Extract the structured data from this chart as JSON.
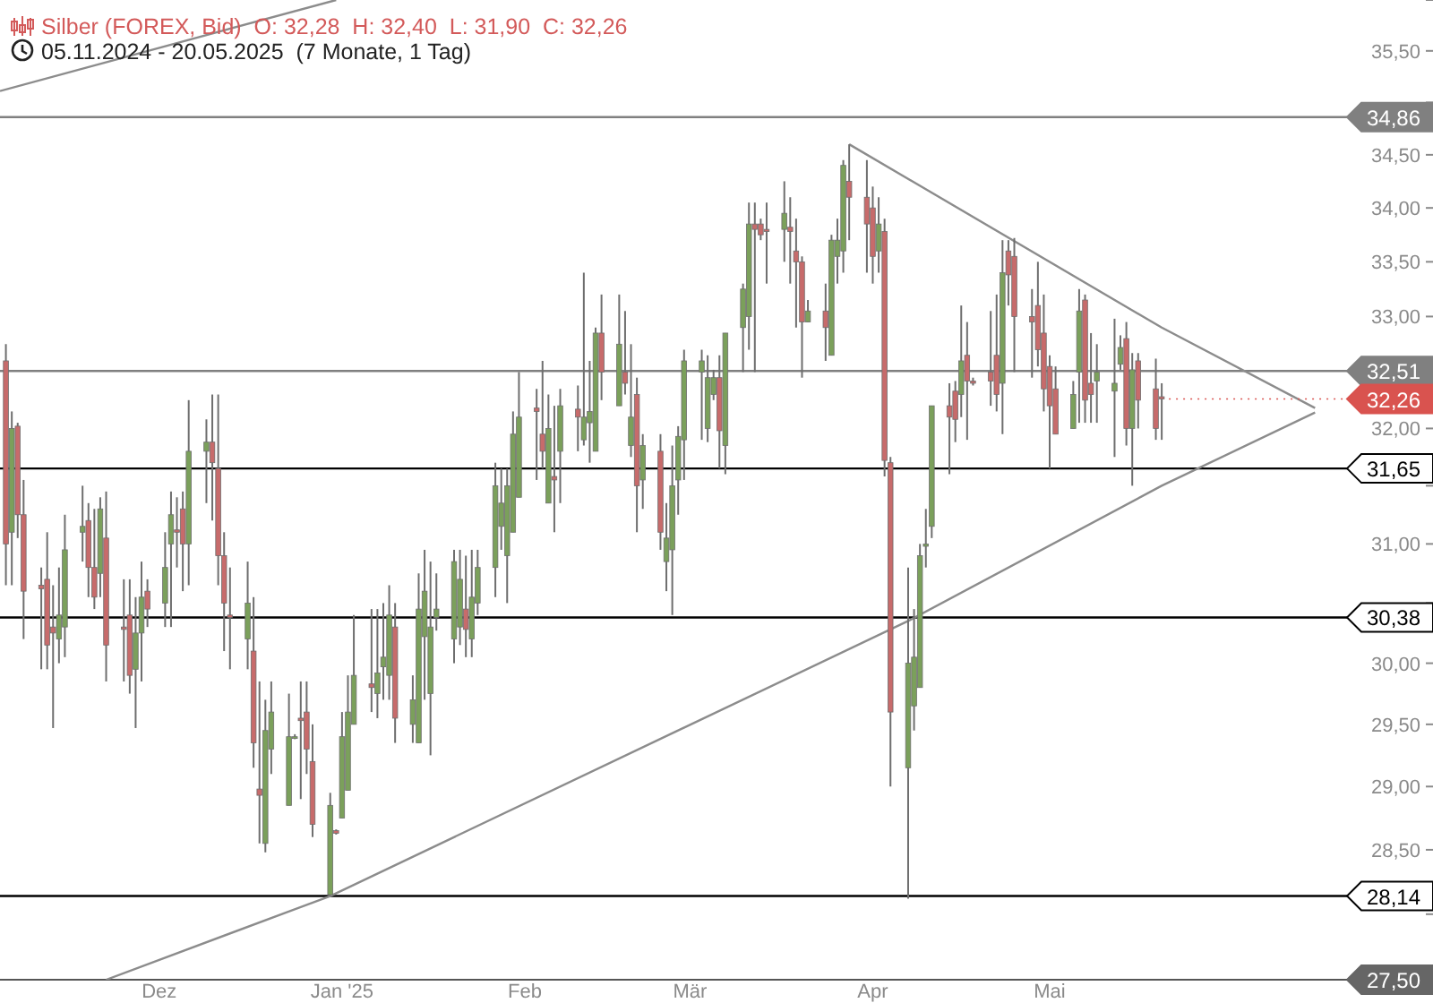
{
  "chart_data": {
    "type": "candlestick",
    "title": "Silber (FOREX, Bid)  O: 32,28  H: 32,40  L: 31,90  C: 32,26",
    "subtitle": "05.11.2024 - 20.05.2025  (7 Monate, 1 Tag)",
    "x": [
      "2024-11-05",
      "2024-11-06",
      "2024-11-07",
      "2024-11-08",
      "2024-11-11",
      "2024-11-12",
      "2024-11-13",
      "2024-11-14",
      "2024-11-15",
      "2024-11-18",
      "2024-11-19",
      "2024-11-20",
      "2024-11-21",
      "2024-11-22",
      "2024-11-25",
      "2024-11-26",
      "2024-11-27",
      "2024-11-28",
      "2024-11-29",
      "2024-12-02",
      "2024-12-03",
      "2024-12-04",
      "2024-12-05",
      "2024-12-06",
      "2024-12-09",
      "2024-12-10",
      "2024-12-11",
      "2024-12-12",
      "2024-12-13",
      "2024-12-16",
      "2024-12-17",
      "2024-12-18",
      "2024-12-19",
      "2024-12-20",
      "2024-12-23",
      "2024-12-24",
      "2024-12-25",
      "2024-12-26",
      "2024-12-27",
      "2024-12-30",
      "2024-12-31",
      "2025-01-01",
      "2025-01-02",
      "2025-01-03",
      "2025-01-06",
      "2025-01-07",
      "2025-01-08",
      "2025-01-09",
      "2025-01-10",
      "2025-01-13",
      "2025-01-14",
      "2025-01-15",
      "2025-01-16",
      "2025-01-17",
      "2025-01-20",
      "2025-01-21",
      "2025-01-22",
      "2025-01-23",
      "2025-01-24",
      "2025-01-27",
      "2025-01-28",
      "2025-01-29",
      "2025-01-30",
      "2025-01-31",
      "2025-02-03",
      "2025-02-04",
      "2025-02-05",
      "2025-02-06",
      "2025-02-07",
      "2025-02-10",
      "2025-02-11",
      "2025-02-12",
      "2025-02-13",
      "2025-02-14",
      "2025-02-17",
      "2025-02-18",
      "2025-02-19",
      "2025-02-20",
      "2025-02-21",
      "2025-02-24",
      "2025-02-25",
      "2025-02-26",
      "2025-02-27",
      "2025-02-28",
      "2025-03-03",
      "2025-03-04",
      "2025-03-05",
      "2025-03-06",
      "2025-03-07",
      "2025-03-10",
      "2025-03-11",
      "2025-03-12",
      "2025-03-13",
      "2025-03-14",
      "2025-03-17",
      "2025-03-18",
      "2025-03-19",
      "2025-03-20",
      "2025-03-21",
      "2025-03-24",
      "2025-03-25",
      "2025-03-26",
      "2025-03-27",
      "2025-03-28",
      "2025-03-31",
      "2025-04-01",
      "2025-04-02",
      "2025-04-03",
      "2025-04-04",
      "2025-04-07",
      "2025-04-08",
      "2025-04-09",
      "2025-04-10",
      "2025-04-11",
      "2025-04-14",
      "2025-04-15",
      "2025-04-16",
      "2025-04-17",
      "2025-04-18",
      "2025-04-21",
      "2025-04-22",
      "2025-04-23",
      "2025-04-24",
      "2025-04-25",
      "2025-04-28",
      "2025-04-29",
      "2025-04-30",
      "2025-05-01",
      "2025-05-02",
      "2025-05-05",
      "2025-05-06",
      "2025-05-07",
      "2025-05-08",
      "2025-05-09",
      "2025-05-12",
      "2025-05-13",
      "2025-05-14",
      "2025-05-15",
      "2025-05-16",
      "2025-05-19",
      "2025-05-20"
    ],
    "ohlc": [
      [
        32.6,
        32.75,
        30.65,
        31.0
      ],
      [
        31.1,
        32.15,
        30.65,
        32.0
      ],
      [
        32.02,
        32.05,
        31.05,
        31.25
      ],
      [
        31.25,
        31.55,
        30.2,
        30.6
      ],
      [
        30.65,
        30.8,
        29.95,
        30.62
      ],
      [
        30.7,
        31.1,
        29.95,
        30.15
      ],
      [
        30.3,
        30.65,
        29.47,
        30.25
      ],
      [
        30.2,
        30.8,
        30.0,
        30.4
      ],
      [
        30.3,
        31.25,
        30.05,
        30.95
      ],
      [
        31.1,
        31.5,
        30.85,
        31.15
      ],
      [
        31.2,
        31.35,
        30.55,
        30.8
      ],
      [
        30.8,
        31.3,
        30.45,
        30.55
      ],
      [
        30.75,
        31.4,
        30.55,
        31.3
      ],
      [
        31.05,
        31.45,
        29.85,
        30.15
      ],
      [
        30.3,
        30.7,
        29.85,
        30.28
      ],
      [
        30.4,
        30.7,
        29.75,
        29.9
      ],
      [
        29.95,
        30.55,
        29.47,
        30.25
      ],
      [
        30.25,
        30.85,
        29.85,
        30.55
      ],
      [
        30.6,
        30.7,
        30.3,
        30.45
      ],
      [
        30.5,
        31.1,
        30.3,
        30.8
      ],
      [
        31.0,
        31.45,
        30.3,
        31.25
      ],
      [
        31.12,
        31.4,
        30.8,
        31.1
      ],
      [
        31.3,
        31.45,
        30.6,
        31.0
      ],
      [
        31.0,
        32.25,
        30.65,
        31.8
      ],
      [
        31.8,
        32.08,
        31.35,
        31.88
      ],
      [
        31.88,
        32.3,
        31.2,
        31.7
      ],
      [
        31.65,
        32.3,
        30.65,
        30.9
      ],
      [
        30.9,
        31.1,
        30.1,
        30.5
      ],
      [
        30.4,
        30.8,
        29.95,
        30.38
      ],
      [
        30.2,
        30.85,
        29.95,
        30.5
      ],
      [
        30.1,
        30.55,
        29.15,
        29.35
      ],
      [
        28.98,
        29.85,
        28.55,
        28.93
      ],
      [
        28.55,
        29.7,
        28.48,
        29.45
      ],
      [
        29.3,
        29.85,
        29.1,
        29.6
      ],
      [
        28.85,
        29.75,
        28.85,
        29.4
      ],
      [
        29.39,
        29.42,
        29.38,
        29.4
      ],
      [
        29.55,
        29.85,
        28.9,
        29.53
      ],
      [
        29.6,
        29.85,
        29.1,
        29.3
      ],
      [
        29.2,
        29.5,
        28.6,
        28.7
      ],
      [
        28.15,
        28.95,
        28.14,
        28.85
      ],
      [
        28.65,
        28.66,
        28.62,
        28.63
      ],
      [
        28.75,
        29.6,
        28.75,
        29.4
      ],
      [
        28.97,
        29.9,
        28.97,
        29.6
      ],
      [
        29.5,
        30.4,
        29.5,
        29.9
      ],
      [
        29.83,
        30.45,
        29.6,
        29.8
      ],
      [
        29.75,
        30.45,
        29.55,
        29.92
      ],
      [
        29.97,
        30.5,
        29.7,
        30.05
      ],
      [
        29.9,
        30.65,
        29.7,
        30.4
      ],
      [
        30.3,
        30.5,
        29.35,
        29.55
      ],
      [
        29.5,
        29.9,
        29.35,
        29.7
      ],
      [
        29.35,
        30.75,
        29.35,
        30.45
      ],
      [
        30.22,
        30.95,
        29.7,
        30.6
      ],
      [
        29.75,
        30.85,
        29.25,
        30.3
      ],
      [
        30.38,
        30.75,
        30.27,
        30.45
      ],
      [
        30.2,
        30.95,
        30.0,
        30.85
      ],
      [
        30.3,
        30.95,
        30.15,
        30.7
      ],
      [
        30.45,
        30.9,
        30.05,
        30.28
      ],
      [
        30.2,
        30.95,
        30.05,
        30.55
      ],
      [
        30.5,
        30.95,
        30.4,
        30.8
      ],
      [
        30.8,
        31.7,
        30.55,
        31.5
      ],
      [
        31.15,
        31.65,
        30.95,
        31.35
      ],
      [
        30.9,
        31.65,
        30.5,
        31.5
      ],
      [
        31.1,
        32.15,
        31.1,
        31.95
      ],
      [
        31.4,
        32.5,
        31.4,
        32.1
      ],
      [
        32.18,
        32.35,
        31.55,
        32.15
      ],
      [
        31.95,
        32.6,
        31.65,
        31.8
      ],
      [
        31.35,
        32.3,
        31.35,
        32.0
      ],
      [
        31.58,
        32.2,
        31.1,
        31.55
      ],
      [
        31.8,
        32.35,
        31.35,
        32.2
      ],
      [
        32.17,
        32.38,
        31.8,
        32.1
      ],
      [
        31.9,
        33.4,
        31.85,
        32.1
      ],
      [
        32.05,
        32.6,
        31.7,
        32.15
      ],
      [
        31.8,
        32.9,
        31.8,
        32.85
      ],
      [
        32.85,
        33.2,
        32.25,
        32.5
      ],
      [
        32.2,
        33.2,
        32.2,
        32.75
      ],
      [
        32.5,
        33.05,
        32.3,
        32.4
      ],
      [
        31.85,
        32.75,
        31.75,
        32.1
      ],
      [
        32.3,
        32.45,
        31.1,
        31.5
      ],
      [
        31.55,
        31.95,
        31.3,
        31.85
      ],
      [
        31.8,
        31.95,
        30.95,
        31.1
      ],
      [
        30.85,
        31.35,
        30.6,
        31.05
      ],
      [
        30.95,
        31.85,
        30.4,
        31.5
      ],
      [
        31.55,
        32.02,
        31.25,
        31.93
      ],
      [
        31.9,
        32.7,
        31.55,
        32.6
      ],
      [
        32.5,
        32.7,
        31.9,
        32.6
      ],
      [
        32.0,
        32.65,
        31.88,
        32.45
      ],
      [
        32.3,
        32.52,
        32.25,
        32.45
      ],
      [
        32.45,
        32.65,
        31.65,
        31.98
      ],
      [
        31.85,
        32.85,
        31.6,
        32.85
      ],
      [
        32.9,
        33.3,
        32.5,
        33.25
      ],
      [
        33.0,
        34.05,
        32.7,
        33.85
      ],
      [
        33.85,
        34.05,
        32.5,
        33.8
      ],
      [
        33.85,
        33.9,
        33.7,
        33.75
      ],
      [
        33.8,
        34.05,
        33.3,
        33.78
      ],
      [
        33.8,
        34.25,
        33.5,
        33.95
      ],
      [
        33.82,
        34.1,
        33.3,
        33.78
      ],
      [
        33.6,
        33.9,
        32.9,
        33.5
      ],
      [
        33.5,
        33.55,
        32.45,
        32.95
      ],
      [
        32.95,
        33.15,
        32.95,
        33.05
      ],
      [
        33.05,
        33.3,
        32.6,
        32.9
      ],
      [
        32.65,
        33.75,
        32.65,
        33.7
      ],
      [
        33.55,
        33.9,
        33.3,
        33.7
      ],
      [
        33.6,
        34.45,
        33.4,
        34.4
      ],
      [
        34.25,
        34.6,
        33.7,
        34.1
      ],
      [
        34.1,
        34.45,
        33.4,
        33.85
      ],
      [
        34.0,
        34.2,
        33.3,
        33.55
      ],
      [
        33.6,
        34.1,
        33.4,
        33.85
      ],
      [
        33.78,
        33.9,
        31.58,
        31.72
      ],
      [
        31.7,
        31.75,
        29.0,
        29.6
      ],
      [
        29.15,
        30.8,
        28.12,
        30.0
      ],
      [
        29.65,
        30.45,
        29.45,
        30.05
      ],
      [
        29.8,
        31.0,
        29.8,
        30.9
      ],
      [
        30.98,
        31.3,
        30.8,
        31.0
      ],
      [
        31.15,
        32.2,
        31.05,
        32.2
      ],
      [
        32.2,
        32.4,
        31.6,
        32.1
      ],
      [
        32.33,
        32.42,
        31.88,
        32.08
      ],
      [
        32.3,
        33.1,
        32.1,
        32.6
      ],
      [
        32.65,
        32.95,
        31.9,
        32.42
      ],
      [
        32.42,
        32.45,
        32.38,
        32.4
      ],
      [
        32.5,
        33.05,
        32.2,
        32.42
      ],
      [
        32.65,
        33.2,
        32.15,
        32.3
      ],
      [
        32.4,
        33.7,
        31.95,
        33.4
      ],
      [
        33.6,
        33.7,
        33.1,
        33.38
      ],
      [
        33.55,
        33.72,
        32.5,
        33.0
      ],
      [
        33.0,
        33.25,
        32.45,
        32.95
      ],
      [
        33.1,
        33.5,
        32.55,
        32.7
      ],
      [
        32.85,
        33.2,
        32.15,
        32.35
      ],
      [
        32.55,
        32.65,
        31.65,
        32.2
      ],
      [
        32.35,
        32.55,
        31.95,
        31.95
      ],
      [
        32.0,
        32.42,
        32.0,
        32.3
      ],
      [
        32.5,
        33.25,
        32.05,
        33.05
      ],
      [
        33.15,
        33.2,
        32.05,
        32.25
      ],
      [
        32.4,
        32.85,
        32.05,
        32.3
      ],
      [
        32.42,
        32.75,
        32.05,
        32.5
      ],
      [
        32.33,
        32.98,
        31.75,
        32.4
      ],
      [
        32.57,
        32.83,
        32.52,
        32.72
      ],
      [
        32.8,
        32.95,
        31.85,
        32.0
      ],
      [
        32.0,
        32.67,
        31.5,
        32.52
      ],
      [
        32.6,
        32.67,
        32.0,
        32.25
      ],
      [
        32.35,
        32.62,
        31.9,
        32.0
      ],
      [
        32.28,
        32.4,
        31.9,
        32.26
      ]
    ],
    "colors": [
      "#c76b6b",
      "#7ba05b",
      "#c76b6b",
      "#c76b6b",
      "#c76b6b",
      "#c76b6b",
      "#c76b6b",
      "#7ba05b",
      "#7ba05b",
      "#7ba05b",
      "#c76b6b",
      "#c76b6b",
      "#7ba05b",
      "#c76b6b",
      "#c76b6b",
      "#c76b6b",
      "#7ba05b",
      "#7ba05b",
      "#c76b6b",
      "#7ba05b",
      "#7ba05b",
      "#c76b6b",
      "#c76b6b",
      "#7ba05b",
      "#7ba05b",
      "#c76b6b",
      "#c76b6b",
      "#c76b6b",
      "#c76b6b",
      "#7ba05b",
      "#c76b6b",
      "#c76b6b",
      "#7ba05b",
      "#7ba05b",
      "#7ba05b",
      "#7ba05b",
      "#c76b6b",
      "#c76b6b",
      "#c76b6b",
      "#7ba05b",
      "#c76b6b",
      "#7ba05b",
      "#7ba05b",
      "#7ba05b",
      "#c76b6b",
      "#7ba05b",
      "#7ba05b",
      "#7ba05b",
      "#c76b6b",
      "#7ba05b",
      "#7ba05b",
      "#7ba05b",
      "#7ba05b",
      "#7ba05b",
      "#7ba05b",
      "#7ba05b",
      "#c76b6b",
      "#7ba05b",
      "#7ba05b",
      "#7ba05b",
      "#7ba05b",
      "#7ba05b",
      "#7ba05b",
      "#7ba05b",
      "#c76b6b",
      "#c76b6b",
      "#7ba05b",
      "#c76b6b",
      "#7ba05b",
      "#c76b6b",
      "#7ba05b",
      "#7ba05b",
      "#7ba05b",
      "#c76b6b",
      "#7ba05b",
      "#c76b6b",
      "#7ba05b",
      "#c76b6b",
      "#7ba05b",
      "#c76b6b",
      "#7ba05b",
      "#7ba05b",
      "#7ba05b",
      "#7ba05b",
      "#7ba05b",
      "#7ba05b",
      "#7ba05b",
      "#c76b6b",
      "#7ba05b",
      "#7ba05b",
      "#7ba05b",
      "#c76b6b",
      "#c76b6b",
      "#c76b6b",
      "#7ba05b",
      "#c76b6b",
      "#c76b6b",
      "#c76b6b",
      "#7ba05b",
      "#c76b6b",
      "#7ba05b",
      "#7ba05b",
      "#7ba05b",
      "#c76b6b",
      "#c76b6b",
      "#c76b6b",
      "#7ba05b",
      "#c76b6b",
      "#c76b6b",
      "#7ba05b",
      "#7ba05b",
      "#7ba05b",
      "#7ba05b",
      "#7ba05b",
      "#c76b6b",
      "#c76b6b",
      "#7ba05b",
      "#c76b6b",
      "#c76b6b",
      "#c76b6b",
      "#c76b6b",
      "#7ba05b",
      "#c76b6b",
      "#c76b6b",
      "#c76b6b",
      "#c76b6b",
      "#c76b6b",
      "#c76b6b",
      "#c76b6b",
      "#7ba05b",
      "#7ba05b",
      "#c76b6b",
      "#c76b6b",
      "#7ba05b",
      "#7ba05b",
      "#7ba05b",
      "#c76b6b",
      "#7ba05b",
      "#c76b6b",
      "#c76b6b",
      "#c76b6b"
    ],
    "series": [
      {
        "type": "line",
        "color": "#8c8c8c",
        "x": [
          "2024-11-22",
          "2024-12-30",
          "2025-04-07",
          "2025-05-20",
          "2025-06-15"
        ],
        "values": [
          27.5,
          28.14,
          30.35,
          31.5,
          32.14
        ]
      },
      {
        "type": "line",
        "color": "#8c8c8c",
        "x": [
          "2025-03-28",
          "2025-05-20",
          "2025-06-15"
        ],
        "values": [
          34.6,
          32.9,
          32.18
        ]
      },
      {
        "type": "line",
        "color": "#8c8c8c",
        "x": [
          "2024-11-04",
          "2024-12-31"
        ],
        "values": [
          35.11,
          36.0
        ]
      }
    ],
    "ref_lines": [
      {
        "axis": "y",
        "value": 34.86,
        "label": "34,86",
        "color": "#808080"
      },
      {
        "axis": "y",
        "value": 32.51,
        "label": "32,51",
        "color": "#808080"
      },
      {
        "axis": "y",
        "value": 31.65,
        "label": "31,65",
        "color": "#000000"
      },
      {
        "axis": "y",
        "value": 30.38,
        "label": "30,38",
        "color": "#000000"
      },
      {
        "axis": "y",
        "value": 28.14,
        "label": "28,14",
        "color": "#000000"
      }
    ],
    "annotations": [
      {
        "text": "32,26",
        "x": "2025-05-20",
        "y": 32.26
      }
    ],
    "log": true,
    "xlim": [
      "2024-11-04",
      "2025-07-05"
    ],
    "xticks": [
      {
        "value": "2024-12-01",
        "label": "Dez"
      },
      {
        "value": "2025-01-01",
        "label": "Jan '25"
      },
      {
        "value": "2025-02-01",
        "label": "Feb"
      },
      {
        "value": "2025-03-01",
        "label": "Mär"
      },
      {
        "value": "2025-04-01",
        "label": "Apr"
      },
      {
        "value": "2025-05-01",
        "label": "Mai"
      }
    ],
    "ylim": [
      27.5,
      36.0
    ],
    "yticks": [
      {
        "value": 27.5,
        "label": "27,50"
      },
      {
        "value": 28,
        "label": null
      },
      {
        "value": 28.5,
        "label": "28,50"
      },
      {
        "value": 29,
        "label": "29,00"
      },
      {
        "value": 29.5,
        "label": "29,50"
      },
      {
        "value": 30,
        "label": "30,00"
      },
      {
        "value": 30.5,
        "label": null
      },
      {
        "value": 31,
        "label": "31,00"
      },
      {
        "value": 31.5,
        "label": null
      },
      {
        "value": 32,
        "label": "32,00"
      },
      {
        "value": 32.5,
        "label": null
      },
      {
        "value": 33,
        "label": "33,00"
      },
      {
        "value": 33.5,
        "label": "33,50"
      },
      {
        "value": 34,
        "label": "34,00"
      },
      {
        "value": 34.5,
        "label": "34,50"
      },
      {
        "value": 35,
        "label": null
      },
      {
        "value": 35.5,
        "label": "35,50"
      },
      {
        "value": 36,
        "label": null
      }
    ]
  }
}
